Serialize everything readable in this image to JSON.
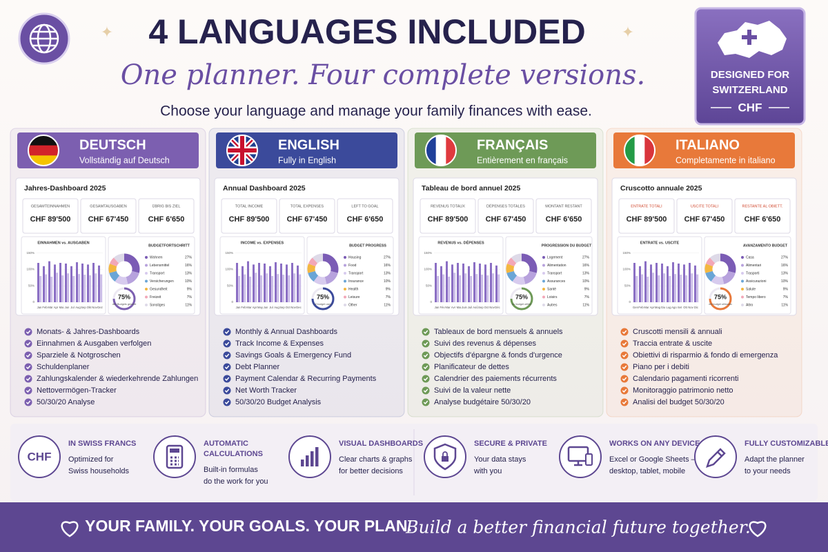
{
  "header": {
    "title": "4 LANGUAGES INCLUDED",
    "tagline": "One planner. Four complete versions.",
    "subtitle": "Choose your language and manage your family finances with ease."
  },
  "badge": {
    "line1": "DESIGNED FOR",
    "line2": "SWITZERLAND",
    "currency": "CHF"
  },
  "languages": [
    {
      "name": "DEUTSCH",
      "subtitle": "Vollständig auf Deutsch",
      "color": "#7c5fb0",
      "dashboard_title": "Jahres-Dashboard 2025",
      "kpis": [
        {
          "label": "GESAMTEINNAHMEN",
          "value": "CHF 89'500"
        },
        {
          "label": "GESAMTAUSGABEN",
          "value": "CHF 67'450"
        },
        {
          "label": "ÜBRIG BIS ZIEL",
          "value": "CHF 6'650"
        }
      ],
      "chart_title": "EINNAHMEN vs. AUSGABEN",
      "months": [
        "Jan",
        "Feb",
        "Mär",
        "Apr",
        "Mai",
        "Jun",
        "Jul",
        "Aug",
        "Sep",
        "Okt",
        "Nov",
        "Dez"
      ],
      "ylim": [
        0,
        160
      ],
      "yticks": [
        0,
        {
          "value": 50,
          "label": "50%"
        },
        {
          "value": 100,
          "label": "100%"
        },
        {
          "value": 150,
          "label": "150%"
        }
      ],
      "income": [
        120,
        110,
        125,
        115,
        120,
        118,
        110,
        122,
        118,
        115,
        120,
        112
      ],
      "expenses": [
        80,
        85,
        78,
        90,
        82,
        88,
        80,
        86,
        84,
        82,
        88,
        85
      ],
      "budget": {
        "title": "BUDGETFORTSCHRITT",
        "labels": [
          "Wohnen",
          "Lebensmittel",
          "Transport",
          "Versicherungen",
          "Gesundheit",
          "Freizeit",
          "Sonstiges"
        ],
        "values": [
          27,
          16,
          13,
          10,
          9,
          7,
          11
        ],
        "value_labels": [
          "27%",
          "16%",
          "13%",
          "10%",
          "9%",
          "7%",
          "11%"
        ],
        "used": {
          "value": 75,
          "label": "75%"
        },
        "caption": "des Budgets genutzt"
      },
      "features": [
        "Monats- & Jahres-Dashboards",
        "Einnahmen & Ausgaben verfolgen",
        "Sparziele & Notgroschen",
        "Schuldenplaner",
        "Zahlungskalender & wiederkehrende Zahlungen",
        "Nettovermögen-Tracker",
        "50/30/20 Analyse"
      ]
    },
    {
      "name": "ENGLISH",
      "subtitle": "Fully in English",
      "color": "#3b4a9b",
      "dashboard_title": "Annual Dashboard 2025",
      "kpis": [
        {
          "label": "TOTAL INCOME",
          "value": "CHF 89'500"
        },
        {
          "label": "TOTAL EXPENSES",
          "value": "CHF 67'450"
        },
        {
          "label": "LEFT TO GOAL",
          "value": "CHF 6'650"
        }
      ],
      "chart_title": "INCOME vs. EXPENSES",
      "months": [
        "Jan",
        "Feb",
        "Mar",
        "Apr",
        "May",
        "Jun",
        "Jul",
        "Aug",
        "Sep",
        "Oct",
        "Nov",
        "Dec"
      ],
      "ylim": [
        0,
        160
      ],
      "yticks": [
        0,
        {
          "value": 50,
          "label": "50%"
        },
        {
          "value": 100,
          "label": "100%"
        },
        {
          "value": 150,
          "label": "150%"
        }
      ],
      "income": [
        120,
        110,
        125,
        115,
        120,
        118,
        110,
        122,
        118,
        115,
        120,
        112
      ],
      "expenses": [
        80,
        85,
        78,
        90,
        82,
        88,
        80,
        86,
        84,
        82,
        88,
        85
      ],
      "budget": {
        "title": "BUDGET PROGRESS",
        "labels": [
          "Housing",
          "Food",
          "Transport",
          "Insurance",
          "Health",
          "Leisure",
          "Other"
        ],
        "values": [
          27,
          16,
          13,
          10,
          9,
          7,
          11
        ],
        "value_labels": [
          "27%",
          "16%",
          "13%",
          "10%",
          "9%",
          "7%",
          "11%"
        ],
        "used": {
          "value": 75,
          "label": "75%"
        },
        "caption": "of budget used"
      },
      "features": [
        "Monthly & Annual Dashboards",
        "Track Income & Expenses",
        "Savings Goals & Emergency Fund",
        "Debt Planner",
        "Payment Calendar & Recurring Payments",
        "Net Worth Tracker",
        "50/30/20 Budget Analysis"
      ]
    },
    {
      "name": "FRANÇAIS",
      "subtitle": "Entièrement en français",
      "color": "#6e9a57",
      "dashboard_title": "Tableau de bord annuel 2025",
      "kpis": [
        {
          "label": "REVENUS TOTAUX",
          "value": "CHF 89'500"
        },
        {
          "label": "DÉPENSES TOTALES",
          "value": "CHF 67'450"
        },
        {
          "label": "MONTANT RESTANT",
          "value": "CHF 6'650"
        }
      ],
      "chart_title": "REVENUS vs. DÉPENSES",
      "months": [
        "Jan",
        "Fév",
        "Mar",
        "Avr",
        "Mai",
        "Juin",
        "Juil",
        "Aoû",
        "Sep",
        "Oct",
        "Nov",
        "Déc"
      ],
      "ylim": [
        0,
        160
      ],
      "yticks": [
        0,
        {
          "value": 50,
          "label": "50%"
        },
        {
          "value": 100,
          "label": "100%"
        },
        {
          "value": 150,
          "label": "150%"
        }
      ],
      "income": [
        120,
        110,
        125,
        115,
        120,
        118,
        110,
        122,
        118,
        115,
        120,
        112
      ],
      "expenses": [
        80,
        85,
        78,
        90,
        82,
        88,
        80,
        86,
        84,
        82,
        88,
        85
      ],
      "budget": {
        "title": "PROGRESSION DU BUDGET",
        "labels": [
          "Logement",
          "Alimentation",
          "Transport",
          "Assurances",
          "Santé",
          "Loisirs",
          "Autres"
        ],
        "values": [
          27,
          16,
          13,
          10,
          9,
          7,
          11
        ],
        "value_labels": [
          "27%",
          "16%",
          "13%",
          "10%",
          "9%",
          "7%",
          "11%"
        ],
        "used": {
          "value": 75,
          "label": "75%"
        },
        "caption": "du budget utilisé"
      },
      "features": [
        "Tableaux de bord mensuels & annuels",
        "Suivi des revenus & dépenses",
        "Objectifs d'épargne & fonds d'urgence",
        "Planificateur de dettes",
        "Calendrier des paiements récurrents",
        "Suivi de la valeur nette",
        "Analyse budgétaire 50/30/20"
      ]
    },
    {
      "name": "ITALIANO",
      "subtitle": "Completamente in italiano",
      "color": "#e8793a",
      "dashboard_title": "Cruscotto annuale 2025",
      "kpis": [
        {
          "label": "ENTRATE TOTALI",
          "value": "CHF 89'500"
        },
        {
          "label": "USCITE TOTALI",
          "value": "CHF 67'450"
        },
        {
          "label": "RESTANTE AL OBIETT.",
          "value": "CHF 6'650"
        }
      ],
      "chart_title": "ENTRATE vs. USCITE",
      "months": [
        "Gen",
        "Feb",
        "Mar",
        "Apr",
        "Mag",
        "Giu",
        "Lug",
        "Ago",
        "Set",
        "Ott",
        "Nov",
        "Dic"
      ],
      "ylim": [
        0,
        160
      ],
      "yticks": [
        0,
        {
          "value": 50,
          "label": "50%"
        },
        {
          "value": 100,
          "label": "100%"
        },
        {
          "value": 150,
          "label": "150%"
        }
      ],
      "income": [
        120,
        110,
        125,
        115,
        120,
        118,
        110,
        122,
        118,
        115,
        120,
        112
      ],
      "expenses": [
        80,
        85,
        78,
        90,
        82,
        88,
        80,
        86,
        84,
        82,
        88,
        85
      ],
      "budget": {
        "title": "AVANZAMENTO BUDGET",
        "labels": [
          "Casa",
          "Alimentari",
          "Trasporti",
          "Assicurazioni",
          "Salute",
          "Tempo libero",
          "Altro"
        ],
        "values": [
          27,
          16,
          13,
          10,
          9,
          7,
          11
        ],
        "value_labels": [
          "27%",
          "16%",
          "13%",
          "10%",
          "9%",
          "7%",
          "11%"
        ],
        "used": {
          "value": 75,
          "label": "75%"
        },
        "caption": "del budget utilizzato"
      },
      "features": [
        "Cruscotti mensili & annuali",
        "Traccia entrate & uscite",
        "Obiettivi di risparmio & fondo di emergenza",
        "Piano per i debiti",
        "Calendario pagamenti ricorrenti",
        "Monitoraggio patrimonio netto",
        "Analisi del budget 50/30/20"
      ]
    }
  ],
  "highlights": [
    {
      "icon_text": "CHF",
      "title": [
        "IN SWISS FRANCS"
      ],
      "text": [
        "Optimized for",
        "Swiss households"
      ]
    },
    {
      "title": [
        "AUTOMATIC",
        "CALCULATIONS"
      ],
      "text": [
        "Built-in formulas",
        "do the work for you"
      ]
    },
    {
      "title": [
        "VISUAL DASHBOARDS"
      ],
      "text": [
        "Clear charts & graphs",
        "for better decisions"
      ]
    },
    {
      "title": [
        "SECURE & PRIVATE"
      ],
      "text": [
        "Your data stays",
        "with you"
      ]
    },
    {
      "title": [
        "WORKS ON ANY DEVICE"
      ],
      "text": [
        "Excel or Google Sheets –",
        "desktop, tablet, mobile"
      ]
    },
    {
      "title": [
        "FULLY CUSTOMIZABLE"
      ],
      "text": [
        "Adapt the planner",
        "to your needs"
      ]
    }
  ],
  "footer": {
    "slogan": "YOUR FAMILY. YOUR GOALS. YOUR PLAN.",
    "tagline": "Build a better financial future together."
  }
}
